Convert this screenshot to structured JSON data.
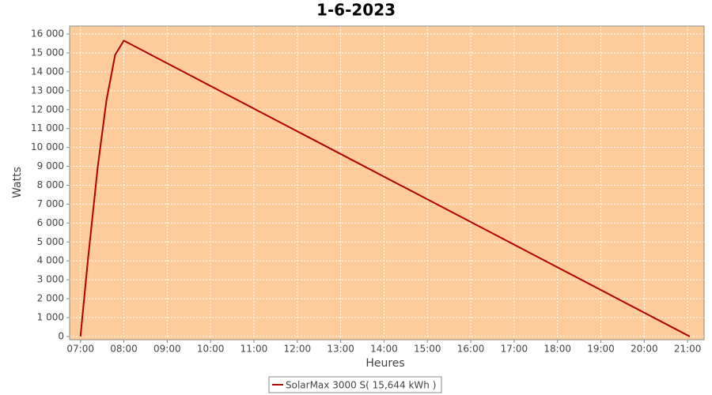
{
  "chart_data": {
    "type": "line",
    "title": "1-6-2023",
    "x_label": "Heures",
    "y_label": "Watts",
    "x": [
      7.0,
      7.17,
      7.4,
      7.6,
      7.8,
      8.0,
      21.05
    ],
    "series": [
      {
        "name": "SolarMax 3000 S( 15,644 kWh )",
        "color": "#b00000",
        "values": [
          0,
          4000,
          9000,
          12500,
          14900,
          15650,
          0
        ]
      }
    ],
    "xlim": [
      6.75,
      21.38
    ],
    "xticks": [
      {
        "value": 7,
        "label": "07:00"
      },
      {
        "value": 8,
        "label": "08:00"
      },
      {
        "value": 9,
        "label": "09:00"
      },
      {
        "value": 10,
        "label": "10:00"
      },
      {
        "value": 11,
        "label": "11:00"
      },
      {
        "value": 12,
        "label": "12:00"
      },
      {
        "value": 13,
        "label": "13:00"
      },
      {
        "value": 14,
        "label": "14:00"
      },
      {
        "value": 15,
        "label": "15:00"
      },
      {
        "value": 16,
        "label": "16:00"
      },
      {
        "value": 17,
        "label": "17:00"
      },
      {
        "value": 18,
        "label": "18:00"
      },
      {
        "value": 19,
        "label": "19:00"
      },
      {
        "value": 20,
        "label": "20:00"
      },
      {
        "value": 21,
        "label": "21:00"
      }
    ],
    "ylim": [
      -170,
      16420
    ],
    "yticks": [
      0,
      {
        "value": 1000,
        "label": "1 000"
      },
      {
        "value": 2000,
        "label": "2 000"
      },
      {
        "value": 3000,
        "label": "3 000"
      },
      {
        "value": 4000,
        "label": "4 000"
      },
      {
        "value": 5000,
        "label": "5 000"
      },
      {
        "value": 6000,
        "label": "6 000"
      },
      {
        "value": 7000,
        "label": "7 000"
      },
      {
        "value": 8000,
        "label": "8 000"
      },
      {
        "value": 9000,
        "label": "9 000"
      },
      {
        "value": 10000,
        "label": "10 000"
      },
      {
        "value": 11000,
        "label": "11 000"
      },
      {
        "value": 12000,
        "label": "12 000"
      },
      {
        "value": 13000,
        "label": "13 000"
      },
      {
        "value": 14000,
        "label": "14 000"
      },
      {
        "value": 15000,
        "label": "15 000"
      },
      {
        "value": 16000,
        "label": "16 000"
      }
    ],
    "grid": true,
    "plot_background": "#fecb9b",
    "legend": "bottom"
  }
}
